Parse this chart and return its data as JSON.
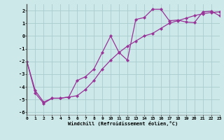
{
  "xlabel": "Windchill (Refroidissement éolien,°C)",
  "background_color": "#cce8e8",
  "grid_color": "#aacccc",
  "line_color": "#993399",
  "curve1_x": [
    0,
    1,
    2,
    3,
    4,
    5,
    6,
    7,
    8,
    9,
    10,
    11,
    12,
    13,
    14,
    15,
    16,
    17,
    18,
    19,
    20,
    21,
    22,
    23
  ],
  "curve1_y": [
    -2.0,
    -4.5,
    -5.3,
    -4.9,
    -4.9,
    -4.8,
    -4.7,
    -4.2,
    -3.5,
    -2.6,
    -1.9,
    -1.3,
    -0.8,
    -0.4,
    0.0,
    0.2,
    0.6,
    1.0,
    1.2,
    1.4,
    1.6,
    1.75,
    1.85,
    1.9
  ],
  "curve2_x": [
    0,
    1,
    2,
    3,
    4,
    5,
    6,
    7,
    8,
    9,
    10,
    11,
    12,
    13,
    14,
    15,
    16,
    17,
    18,
    19,
    20,
    21,
    22,
    23
  ],
  "curve2_y": [
    -2.0,
    -4.3,
    -5.2,
    -4.9,
    -4.9,
    -4.8,
    -3.5,
    -3.2,
    -2.6,
    -1.3,
    0.0,
    -1.3,
    -1.9,
    1.3,
    1.45,
    2.1,
    2.1,
    1.2,
    1.25,
    1.1,
    1.05,
    1.9,
    1.95,
    1.6
  ],
  "xlim": [
    0,
    23
  ],
  "ylim": [
    -6.2,
    2.5
  ],
  "yticks": [
    -6,
    -5,
    -4,
    -3,
    -2,
    -1,
    0,
    1,
    2
  ],
  "xticks": [
    0,
    1,
    2,
    3,
    4,
    5,
    6,
    7,
    8,
    9,
    10,
    11,
    12,
    13,
    14,
    15,
    16,
    17,
    18,
    19,
    20,
    21,
    22,
    23
  ],
  "marker": "D",
  "markersize": 2.2,
  "linewidth": 0.9
}
